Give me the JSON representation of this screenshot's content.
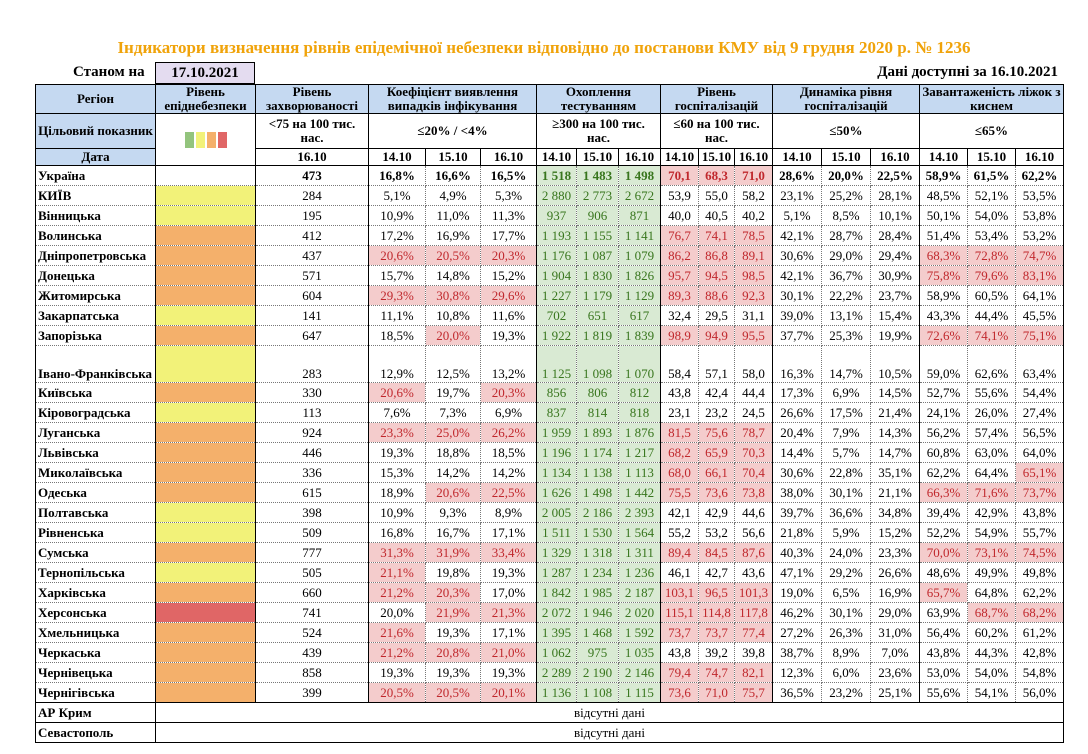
{
  "title": "Індикатори визначення рівнів епідемічної небезпеки відповідно до постанови КМУ від 9 грудня 2020 р. № 1236",
  "as_of_label": "Станом на",
  "as_of_date": "17.10.2021",
  "available_label": "Дані доступні за 16.10.2021",
  "colors": {
    "green": "#93c47d",
    "yellow": "#f2f279",
    "orange": "#f4b06b",
    "red": "#e06666"
  },
  "headers": {
    "region": "Регіон",
    "level": "Рівень епіднебезпеки",
    "incidence": "Рівень захворюваності",
    "coef": "Коефіцієнт виявлення випадків інфікування",
    "testing": "Охоплення тестуванням",
    "hosp": "Рівень госпіталізацій",
    "dyn": "Динаміка рівня госпіталізацій",
    "beds": "Завантаженість ліжок з киснем"
  },
  "targets": {
    "label": "Цільовий показник",
    "incidence": "<75 на 100 тис. нас.",
    "coef": "≤20% / <4%",
    "testing": "≥300 на 100 тис. нас.",
    "hosp": "≤60 на 100 тис. нас.",
    "dyn": "≤50%",
    "beds": "≤65%"
  },
  "dates": {
    "label": "Дата",
    "incidence": "16.10",
    "triple": [
      "14.10",
      "15.10",
      "16.10"
    ]
  },
  "rows": [
    {
      "region": "Україна",
      "level": "",
      "inc": "473",
      "coef": [
        "16,8%",
        "16,6%",
        "16,5%"
      ],
      "coef_hl": [
        0,
        0,
        0
      ],
      "test": [
        "1 518",
        "1 483",
        "1 498"
      ],
      "hosp": [
        "70,1",
        "68,3",
        "71,0"
      ],
      "dyn": [
        "28,6%",
        "20,0%",
        "22,5%"
      ],
      "beds": [
        "58,9%",
        "61,5%",
        "62,2%"
      ]
    },
    {
      "region": "КИЇВ",
      "level": "yellow",
      "inc": "284",
      "coef": [
        "5,1%",
        "4,9%",
        "5,3%"
      ],
      "coef_hl": [
        0,
        0,
        0
      ],
      "test": [
        "2 880",
        "2 773",
        "2 672"
      ],
      "hosp": [
        "53,9",
        "55,0",
        "58,2"
      ],
      "dyn": [
        "23,1%",
        "25,2%",
        "28,1%"
      ],
      "beds": [
        "48,5%",
        "52,1%",
        "53,5%"
      ]
    },
    {
      "region": "Вінницька",
      "level": "yellow",
      "inc": "195",
      "coef": [
        "10,9%",
        "11,0%",
        "11,3%"
      ],
      "coef_hl": [
        0,
        0,
        0
      ],
      "test": [
        "937",
        "906",
        "871"
      ],
      "hosp": [
        "40,0",
        "40,5",
        "40,2"
      ],
      "dyn": [
        "5,1%",
        "8,5%",
        "10,1%"
      ],
      "beds": [
        "50,1%",
        "54,0%",
        "53,8%"
      ]
    },
    {
      "region": "Волинська",
      "level": "orange",
      "inc": "412",
      "coef": [
        "17,2%",
        "16,9%",
        "17,7%"
      ],
      "coef_hl": [
        0,
        0,
        0
      ],
      "test": [
        "1 193",
        "1 155",
        "1 141"
      ],
      "hosp": [
        "76,7",
        "74,1",
        "78,5"
      ],
      "dyn": [
        "42,1%",
        "28,7%",
        "28,4%"
      ],
      "beds": [
        "51,4%",
        "53,4%",
        "53,2%"
      ]
    },
    {
      "region": "Дніпропетровська",
      "level": "orange",
      "inc": "437",
      "coef": [
        "20,6%",
        "20,5%",
        "20,3%"
      ],
      "coef_hl": [
        1,
        1,
        1
      ],
      "test": [
        "1 176",
        "1 087",
        "1 079"
      ],
      "hosp": [
        "86,2",
        "86,8",
        "89,1"
      ],
      "dyn": [
        "30,6%",
        "29,0%",
        "29,4%"
      ],
      "beds": [
        "68,3%",
        "72,8%",
        "74,7%"
      ]
    },
    {
      "region": "Донецька",
      "level": "orange",
      "inc": "571",
      "coef": [
        "15,7%",
        "14,8%",
        "15,2%"
      ],
      "coef_hl": [
        0,
        0,
        0
      ],
      "test": [
        "1 904",
        "1 830",
        "1 826"
      ],
      "hosp": [
        "95,7",
        "94,5",
        "98,5"
      ],
      "dyn": [
        "42,1%",
        "36,7%",
        "30,9%"
      ],
      "beds": [
        "75,8%",
        "79,6%",
        "83,1%"
      ]
    },
    {
      "region": "Житомирська",
      "level": "orange",
      "inc": "604",
      "coef": [
        "29,3%",
        "30,8%",
        "29,6%"
      ],
      "coef_hl": [
        1,
        1,
        1
      ],
      "test": [
        "1 227",
        "1 179",
        "1 129"
      ],
      "hosp": [
        "89,3",
        "88,6",
        "92,3"
      ],
      "dyn": [
        "30,1%",
        "22,2%",
        "23,7%"
      ],
      "beds": [
        "58,9%",
        "60,5%",
        "64,1%"
      ]
    },
    {
      "region": "Закарпатська",
      "level": "yellow",
      "inc": "141",
      "coef": [
        "11,1%",
        "10,8%",
        "11,6%"
      ],
      "coef_hl": [
        0,
        0,
        0
      ],
      "test": [
        "702",
        "651",
        "617"
      ],
      "hosp": [
        "32,4",
        "29,5",
        "31,1"
      ],
      "dyn": [
        "39,0%",
        "13,1%",
        "15,4%"
      ],
      "beds": [
        "43,3%",
        "44,4%",
        "45,5%"
      ]
    },
    {
      "region": "Запорізька",
      "level": "orange",
      "inc": "647",
      "coef": [
        "18,5%",
        "20,0%",
        "19,3%"
      ],
      "coef_hl": [
        0,
        1,
        0
      ],
      "test": [
        "1 922",
        "1 819",
        "1 839"
      ],
      "hosp": [
        "98,9",
        "94,9",
        "95,5"
      ],
      "dyn": [
        "37,7%",
        "25,3%",
        "19,9%"
      ],
      "beds": [
        "72,6%",
        "74,1%",
        "75,1%"
      ]
    },
    {
      "region": "Івано-Франківська",
      "level": "yellow",
      "inc": "283",
      "coef": [
        "12,9%",
        "12,5%",
        "13,2%"
      ],
      "coef_hl": [
        0,
        0,
        0
      ],
      "test": [
        "1 125",
        "1 098",
        "1 070"
      ],
      "hosp": [
        "58,4",
        "57,1",
        "58,0"
      ],
      "dyn": [
        "16,3%",
        "14,7%",
        "10,5%"
      ],
      "beds": [
        "59,0%",
        "62,6%",
        "63,4%"
      ]
    },
    {
      "region": "Київська",
      "level": "orange",
      "inc": "330",
      "coef": [
        "20,6%",
        "19,7%",
        "20,3%"
      ],
      "coef_hl": [
        1,
        0,
        1
      ],
      "test": [
        "856",
        "806",
        "812"
      ],
      "hosp": [
        "43,8",
        "42,4",
        "44,4"
      ],
      "dyn": [
        "17,3%",
        "6,9%",
        "14,5%"
      ],
      "beds": [
        "52,7%",
        "55,6%",
        "54,4%"
      ]
    },
    {
      "region": "Кіровоградська",
      "level": "yellow",
      "inc": "113",
      "coef": [
        "7,6%",
        "7,3%",
        "6,9%"
      ],
      "coef_hl": [
        0,
        0,
        0
      ],
      "test": [
        "837",
        "814",
        "818"
      ],
      "hosp": [
        "23,1",
        "23,2",
        "24,5"
      ],
      "dyn": [
        "26,6%",
        "17,5%",
        "21,4%"
      ],
      "beds": [
        "24,1%",
        "26,0%",
        "27,4%"
      ]
    },
    {
      "region": "Луганська",
      "level": "orange",
      "inc": "924",
      "coef": [
        "23,3%",
        "25,0%",
        "26,2%"
      ],
      "coef_hl": [
        1,
        1,
        1
      ],
      "test": [
        "1 959",
        "1 893",
        "1 876"
      ],
      "hosp": [
        "81,5",
        "75,6",
        "78,7"
      ],
      "dyn": [
        "20,4%",
        "7,9%",
        "14,3%"
      ],
      "beds": [
        "56,2%",
        "57,4%",
        "56,5%"
      ]
    },
    {
      "region": "Львівська",
      "level": "orange",
      "inc": "446",
      "coef": [
        "19,3%",
        "18,8%",
        "18,5%"
      ],
      "coef_hl": [
        0,
        0,
        0
      ],
      "test": [
        "1 196",
        "1 174",
        "1 217"
      ],
      "hosp": [
        "68,2",
        "65,9",
        "70,3"
      ],
      "dyn": [
        "14,4%",
        "5,7%",
        "14,7%"
      ],
      "beds": [
        "60,8%",
        "63,0%",
        "64,0%"
      ]
    },
    {
      "region": "Миколаївська",
      "level": "orange",
      "inc": "336",
      "coef": [
        "15,3%",
        "14,2%",
        "14,2%"
      ],
      "coef_hl": [
        0,
        0,
        0
      ],
      "test": [
        "1 134",
        "1 138",
        "1 113"
      ],
      "hosp": [
        "68,0",
        "66,1",
        "70,4"
      ],
      "dyn": [
        "30,6%",
        "22,8%",
        "35,1%"
      ],
      "beds": [
        "62,2%",
        "64,4%",
        "65,1%"
      ]
    },
    {
      "region": "Одеська",
      "level": "orange",
      "inc": "615",
      "coef": [
        "18,9%",
        "20,6%",
        "22,5%"
      ],
      "coef_hl": [
        0,
        1,
        1
      ],
      "test": [
        "1 626",
        "1 498",
        "1 442"
      ],
      "hosp": [
        "75,5",
        "73,6",
        "73,8"
      ],
      "dyn": [
        "38,0%",
        "30,1%",
        "21,1%"
      ],
      "beds": [
        "66,3%",
        "71,6%",
        "73,7%"
      ]
    },
    {
      "region": "Полтавська",
      "level": "yellow",
      "inc": "398",
      "coef": [
        "10,9%",
        "9,3%",
        "8,9%"
      ],
      "coef_hl": [
        0,
        0,
        0
      ],
      "test": [
        "2 005",
        "2 186",
        "2 393"
      ],
      "hosp": [
        "42,1",
        "42,9",
        "44,6"
      ],
      "dyn": [
        "39,7%",
        "36,6%",
        "34,8%"
      ],
      "beds": [
        "39,4%",
        "42,9%",
        "43,8%"
      ]
    },
    {
      "region": "Рівненська",
      "level": "yellow",
      "inc": "509",
      "coef": [
        "16,8%",
        "16,7%",
        "17,1%"
      ],
      "coef_hl": [
        0,
        0,
        0
      ],
      "test": [
        "1 511",
        "1 530",
        "1 564"
      ],
      "hosp": [
        "55,2",
        "53,2",
        "56,6"
      ],
      "dyn": [
        "21,8%",
        "5,9%",
        "15,2%"
      ],
      "beds": [
        "52,2%",
        "54,9%",
        "55,7%"
      ]
    },
    {
      "region": "Сумська",
      "level": "orange",
      "inc": "777",
      "coef": [
        "31,3%",
        "31,9%",
        "33,4%"
      ],
      "coef_hl": [
        1,
        1,
        1
      ],
      "test": [
        "1 329",
        "1 318",
        "1 311"
      ],
      "hosp": [
        "89,4",
        "84,5",
        "87,6"
      ],
      "dyn": [
        "40,3%",
        "24,0%",
        "23,3%"
      ],
      "beds": [
        "70,0%",
        "73,1%",
        "74,5%"
      ]
    },
    {
      "region": "Тернопільська",
      "level": "yellow",
      "inc": "505",
      "coef": [
        "21,1%",
        "19,8%",
        "19,3%"
      ],
      "coef_hl": [
        1,
        0,
        0
      ],
      "test": [
        "1 287",
        "1 234",
        "1 236"
      ],
      "hosp": [
        "46,1",
        "42,7",
        "43,6"
      ],
      "dyn": [
        "47,1%",
        "29,2%",
        "26,6%"
      ],
      "beds": [
        "48,6%",
        "49,9%",
        "49,8%"
      ]
    },
    {
      "region": "Харківська",
      "level": "orange",
      "inc": "660",
      "coef": [
        "21,2%",
        "20,3%",
        "17,0%"
      ],
      "coef_hl": [
        1,
        1,
        0
      ],
      "test": [
        "1 842",
        "1 985",
        "2 187"
      ],
      "hosp": [
        "103,1",
        "96,5",
        "101,3"
      ],
      "dyn": [
        "19,0%",
        "6,5%",
        "16,9%"
      ],
      "beds": [
        "65,7%",
        "64,8%",
        "62,2%"
      ]
    },
    {
      "region": "Херсонська",
      "level": "red",
      "inc": "741",
      "coef": [
        "20,0%",
        "21,9%",
        "21,3%"
      ],
      "coef_hl": [
        0,
        1,
        1
      ],
      "test": [
        "2 072",
        "1 946",
        "2 020"
      ],
      "hosp": [
        "115,1",
        "114,8",
        "117,8"
      ],
      "dyn": [
        "46,2%",
        "30,1%",
        "29,0%"
      ],
      "beds": [
        "63,9%",
        "68,7%",
        "68,2%"
      ]
    },
    {
      "region": "Хмельницька",
      "level": "orange",
      "inc": "524",
      "coef": [
        "21,6%",
        "19,3%",
        "17,1%"
      ],
      "coef_hl": [
        1,
        0,
        0
      ],
      "test": [
        "1 395",
        "1 468",
        "1 592"
      ],
      "hosp": [
        "73,7",
        "73,7",
        "77,4"
      ],
      "dyn": [
        "27,2%",
        "26,3%",
        "31,0%"
      ],
      "beds": [
        "56,4%",
        "60,2%",
        "61,2%"
      ]
    },
    {
      "region": "Черкаська",
      "level": "orange",
      "inc": "439",
      "coef": [
        "21,2%",
        "20,8%",
        "21,0%"
      ],
      "coef_hl": [
        1,
        1,
        1
      ],
      "test": [
        "1 062",
        "975",
        "1 035"
      ],
      "hosp": [
        "43,8",
        "39,2",
        "39,8"
      ],
      "dyn": [
        "38,7%",
        "8,9%",
        "7,0%"
      ],
      "beds": [
        "43,8%",
        "44,3%",
        "42,8%"
      ]
    },
    {
      "region": "Чернівецька",
      "level": "orange",
      "inc": "858",
      "coef": [
        "19,3%",
        "19,3%",
        "19,3%"
      ],
      "coef_hl": [
        0,
        0,
        0
      ],
      "test": [
        "2 289",
        "2 190",
        "2 146"
      ],
      "hosp": [
        "79,4",
        "74,7",
        "82,1"
      ],
      "dyn": [
        "12,3%",
        "6,0%",
        "23,6%"
      ],
      "beds": [
        "53,0%",
        "54,0%",
        "54,8%"
      ]
    },
    {
      "region": "Чернігівська",
      "level": "orange",
      "inc": "399",
      "coef": [
        "20,5%",
        "20,5%",
        "20,1%"
      ],
      "coef_hl": [
        1,
        1,
        1
      ],
      "test": [
        "1 136",
        "1 108",
        "1 115"
      ],
      "hosp": [
        "73,6",
        "71,0",
        "75,7"
      ],
      "dyn": [
        "36,5%",
        "23,2%",
        "25,1%"
      ],
      "beds": [
        "55,6%",
        "54,1%",
        "56,0%"
      ]
    }
  ],
  "no_data_rows": [
    {
      "region": "АР Крим",
      "text": "відсутні дані"
    },
    {
      "region": "Севастополь",
      "text": "відсутні дані"
    }
  ]
}
